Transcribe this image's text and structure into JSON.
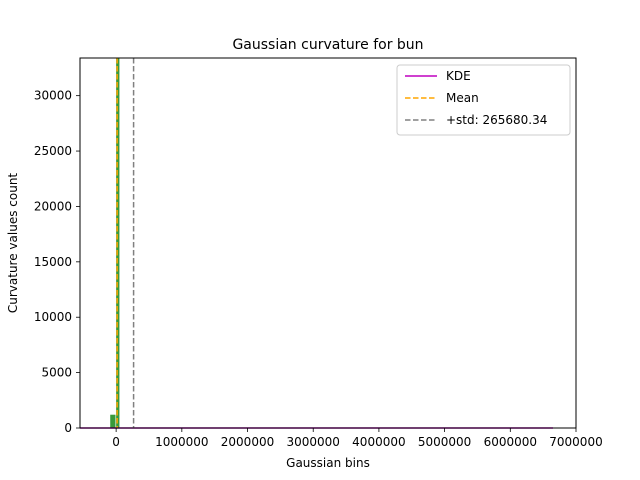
{
  "chart_data": {
    "type": "bar",
    "title": "Gaussian curvature for bun",
    "xlabel": "Gaussian bins",
    "ylabel": "Curvature values count",
    "xlim": [
      -550000,
      7000000
    ],
    "ylim": [
      0,
      33400
    ],
    "x_ticks": [
      0,
      1000000,
      2000000,
      3000000,
      4000000,
      5000000,
      6000000,
      7000000
    ],
    "x_tick_labels": [
      "0",
      "1000000",
      "2000000",
      "3000000",
      "4000000",
      "5000000",
      "6000000",
      "7000000"
    ],
    "y_ticks": [
      0,
      5000,
      10000,
      15000,
      20000,
      25000,
      30000
    ],
    "y_tick_labels": [
      "0",
      "5000",
      "10000",
      "15000",
      "20000",
      "25000",
      "30000"
    ],
    "bars": [
      {
        "x0": -90000,
        "x1": -10000,
        "value": 1200
      },
      {
        "x0": 0,
        "x1": 50000,
        "value": 33400
      }
    ],
    "bar_color": "#3a9a3a",
    "kde": {
      "name": "KDE",
      "x": [
        -550000,
        6650000
      ],
      "y": [
        0,
        0
      ],
      "color": "#bf00bf"
    },
    "mean": {
      "name": "Mean",
      "value": 15000,
      "color": "#ffa500"
    },
    "std_line": {
      "name": "+std: 265680.34",
      "value": 265680.34,
      "color": "#808080"
    },
    "legend": {
      "position": "top-right",
      "entries": [
        "KDE",
        "Mean",
        "+std: 265680.34"
      ]
    },
    "grid": false
  }
}
